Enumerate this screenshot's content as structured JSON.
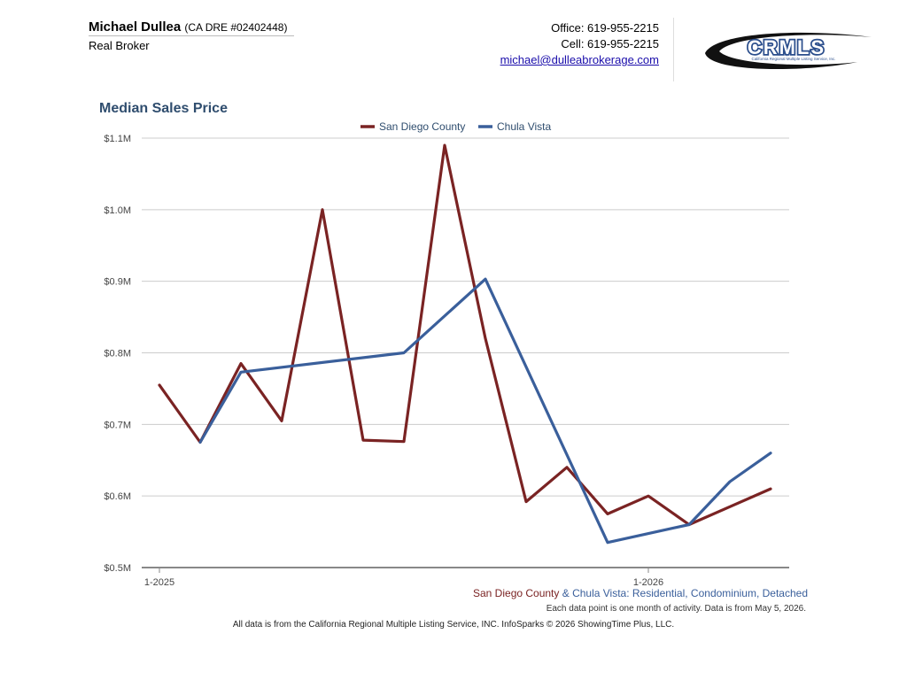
{
  "header": {
    "agent_name": "Michael Dullea",
    "agent_dre": "(CA DRE #02402448)",
    "company": "Real Broker",
    "office": "Office: 619-955-2215",
    "cell": "Cell: 619-955-2215",
    "email": "michael@dulleabrokerage.com",
    "logo_text": "CRMLS",
    "logo_subtext": "California Regional Multiple Listing Service, Inc."
  },
  "footer": {
    "series_sd": "San Diego County",
    "amp": " & ",
    "series_cv": "Chula Vista: Residential, Condominium, Detached",
    "note": "Each data point is one month of activity. Data is from May 5, 2026.",
    "source": "All data is from the California Regional Multiple Listing Service, INC. InfoSparks © 2026 ShowingTime Plus, LLC."
  },
  "colors": {
    "san_diego": "#7a2323",
    "chula_vista": "#3a5f9b",
    "title": "#2f4d6e",
    "grid": "#cccccc",
    "axis": "#888888"
  },
  "chart_data": {
    "type": "line",
    "title": "Median Sales Price",
    "x": [
      "2025-01",
      "2025-02",
      "2025-03",
      "2025-04",
      "2025-05",
      "2025-06",
      "2025-07",
      "2025-08",
      "2025-09",
      "2025-10",
      "2025-11",
      "2025-12",
      "2026-01",
      "2026-02",
      "2026-03",
      "2026-04"
    ],
    "x_tick_labels": [
      {
        "x": "2025-01",
        "label": "1-2025"
      },
      {
        "x": "2026-01",
        "label": "1-2026"
      }
    ],
    "ylim": [
      500000,
      1100000
    ],
    "y_ticks": [
      500000,
      600000,
      700000,
      800000,
      900000,
      1000000,
      1100000
    ],
    "y_tick_labels": [
      "$0.5M",
      "$0.6M",
      "$0.7M",
      "$0.8M",
      "$0.9M",
      "$1.0M",
      "$1.1M"
    ],
    "grid": true,
    "legend_position": "top-center",
    "series": [
      {
        "name": "San Diego County",
        "color": "#7a2323",
        "values": [
          755000,
          675000,
          785000,
          705000,
          1000000,
          678000,
          676000,
          1090000,
          820000,
          592000,
          640000,
          575000,
          600000,
          560000,
          585000,
          610000
        ]
      },
      {
        "name": "Chula Vista",
        "color": "#3a5f9b",
        "values": [
          null,
          675000,
          773000,
          null,
          null,
          null,
          800000,
          null,
          903000,
          null,
          null,
          535000,
          null,
          560000,
          620000,
          660000
        ]
      }
    ]
  }
}
